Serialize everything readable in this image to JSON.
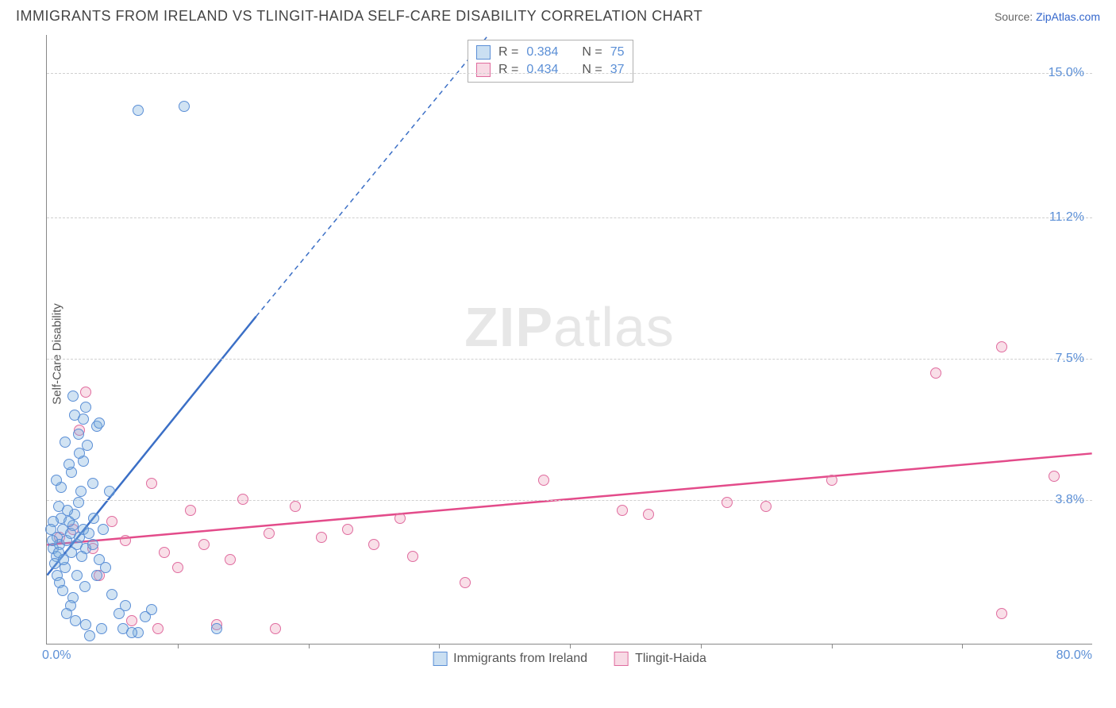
{
  "header": {
    "title": "IMMIGRANTS FROM IRELAND VS TLINGIT-HAIDA SELF-CARE DISABILITY CORRELATION CHART",
    "source_prefix": "Source: ",
    "source_link": "ZipAtlas.com"
  },
  "chart": {
    "type": "scatter",
    "y_axis_label": "Self-Care Disability",
    "background_color": "#ffffff",
    "grid_color": "#d0d0d0",
    "axis_color": "#888888",
    "xlim": [
      0,
      80
    ],
    "ylim": [
      0,
      16
    ],
    "y_ticks": [
      {
        "value": 3.8,
        "label": "3.8%"
      },
      {
        "value": 7.5,
        "label": "7.5%"
      },
      {
        "value": 11.2,
        "label": "11.2%"
      },
      {
        "value": 15.0,
        "label": "15.0%"
      }
    ],
    "x_start_label": "0.0%",
    "x_end_label": "80.0%",
    "x_ticks_at": [
      10,
      20,
      30,
      40,
      50,
      60,
      70
    ],
    "watermark": {
      "zip": "ZIP",
      "atlas": "atlas"
    },
    "stats": [
      {
        "color": "blue",
        "r_label": "R =",
        "r": "0.384",
        "n_label": "N =",
        "n": "75"
      },
      {
        "color": "pink",
        "r_label": "R =",
        "r": "0.434",
        "n_label": "N =",
        "n": "37"
      }
    ],
    "legend": [
      {
        "color": "blue",
        "label": "Immigrants from Ireland"
      },
      {
        "color": "pink",
        "label": "Tlingit-Haida"
      }
    ],
    "series": {
      "blue": {
        "color_fill": "rgba(122,174,222,0.35)",
        "color_stroke": "#5b8fd6",
        "marker_size": 14,
        "trend": {
          "x1": 0,
          "y1": 1.8,
          "x2": 16,
          "y2": 8.6,
          "x2_dash": 35,
          "y2_dash": 16.5,
          "stroke": "#3b6fc6",
          "stroke_width": 2.5
        },
        "points": [
          [
            0.5,
            2.5
          ],
          [
            0.8,
            2.8
          ],
          [
            1.0,
            2.6
          ],
          [
            1.2,
            3.0
          ],
          [
            0.7,
            2.3
          ],
          [
            1.5,
            2.7
          ],
          [
            0.9,
            2.4
          ],
          [
            1.8,
            2.9
          ],
          [
            2.0,
            3.1
          ],
          [
            2.3,
            2.6
          ],
          [
            1.1,
            3.3
          ],
          [
            0.6,
            2.1
          ],
          [
            1.4,
            2.0
          ],
          [
            1.7,
            3.2
          ],
          [
            2.5,
            2.8
          ],
          [
            0.4,
            2.7
          ],
          [
            2.8,
            3.0
          ],
          [
            1.9,
            2.4
          ],
          [
            1.3,
            2.2
          ],
          [
            2.1,
            3.4
          ],
          [
            0.8,
            1.8
          ],
          [
            3.0,
            2.5
          ],
          [
            1.6,
            3.5
          ],
          [
            2.4,
            3.7
          ],
          [
            0.5,
            3.2
          ],
          [
            1.0,
            1.6
          ],
          [
            2.7,
            2.3
          ],
          [
            3.2,
            2.9
          ],
          [
            1.2,
            1.4
          ],
          [
            2.0,
            1.2
          ],
          [
            3.5,
            2.6
          ],
          [
            1.8,
            1.0
          ],
          [
            2.9,
            1.5
          ],
          [
            4.0,
            2.2
          ],
          [
            1.5,
            0.8
          ],
          [
            3.8,
            1.8
          ],
          [
            2.2,
            0.6
          ],
          [
            4.5,
            2.0
          ],
          [
            5.0,
            1.3
          ],
          [
            3.0,
            0.5
          ],
          [
            5.5,
            0.8
          ],
          [
            6.0,
            1.0
          ],
          [
            4.2,
            0.4
          ],
          [
            7.0,
            0.3
          ],
          [
            7.5,
            0.7
          ],
          [
            3.3,
            0.2
          ],
          [
            8.0,
            0.9
          ],
          [
            5.8,
            0.4
          ],
          [
            2.6,
            4.0
          ],
          [
            3.5,
            4.2
          ],
          [
            1.9,
            4.5
          ],
          [
            2.8,
            4.8
          ],
          [
            3.1,
            5.2
          ],
          [
            2.4,
            5.5
          ],
          [
            3.8,
            5.7
          ],
          [
            2.1,
            6.0
          ],
          [
            3.0,
            6.2
          ],
          [
            2.5,
            5.0
          ],
          [
            4.0,
            5.8
          ],
          [
            1.7,
            4.7
          ],
          [
            7.0,
            14.0
          ],
          [
            10.5,
            14.1
          ],
          [
            13.0,
            0.4
          ],
          [
            6.5,
            0.3
          ],
          [
            4.8,
            4.0
          ],
          [
            2.0,
            6.5
          ],
          [
            0.3,
            3.0
          ],
          [
            0.9,
            3.6
          ],
          [
            1.1,
            4.1
          ],
          [
            2.3,
            1.8
          ],
          [
            3.6,
            3.3
          ],
          [
            4.3,
            3.0
          ],
          [
            1.4,
            5.3
          ],
          [
            0.7,
            4.3
          ],
          [
            2.8,
            5.9
          ]
        ]
      },
      "pink": {
        "color_fill": "rgba(235,150,180,0.3)",
        "color_stroke": "#e06c9f",
        "marker_size": 14,
        "trend": {
          "x1": 0,
          "y1": 2.6,
          "x2": 80,
          "y2": 5.0,
          "stroke": "#e34b8a",
          "stroke_width": 2.5
        },
        "points": [
          [
            1.0,
            2.8
          ],
          [
            2.0,
            3.0
          ],
          [
            3.5,
            2.5
          ],
          [
            5.0,
            3.2
          ],
          [
            6.0,
            2.7
          ],
          [
            8.0,
            4.2
          ],
          [
            9.0,
            2.4
          ],
          [
            11.0,
            3.5
          ],
          [
            12.0,
            2.6
          ],
          [
            14.0,
            2.2
          ],
          [
            15.0,
            3.8
          ],
          [
            17.0,
            2.9
          ],
          [
            19.0,
            3.6
          ],
          [
            21.0,
            2.8
          ],
          [
            23.0,
            3.0
          ],
          [
            25.0,
            2.6
          ],
          [
            27.0,
            3.3
          ],
          [
            32.0,
            1.6
          ],
          [
            28.0,
            2.3
          ],
          [
            38.0,
            4.3
          ],
          [
            44.0,
            3.5
          ],
          [
            46.0,
            3.4
          ],
          [
            52.0,
            3.7
          ],
          [
            55.0,
            3.6
          ],
          [
            60.0,
            4.3
          ],
          [
            68.0,
            7.1
          ],
          [
            73.0,
            7.8
          ],
          [
            77.0,
            4.4
          ],
          [
            73.0,
            0.8
          ],
          [
            2.5,
            5.6
          ],
          [
            3.0,
            6.6
          ],
          [
            4.0,
            1.8
          ],
          [
            6.5,
            0.6
          ],
          [
            8.5,
            0.4
          ],
          [
            10.0,
            2.0
          ],
          [
            13.0,
            0.5
          ],
          [
            17.5,
            0.4
          ]
        ]
      }
    }
  }
}
